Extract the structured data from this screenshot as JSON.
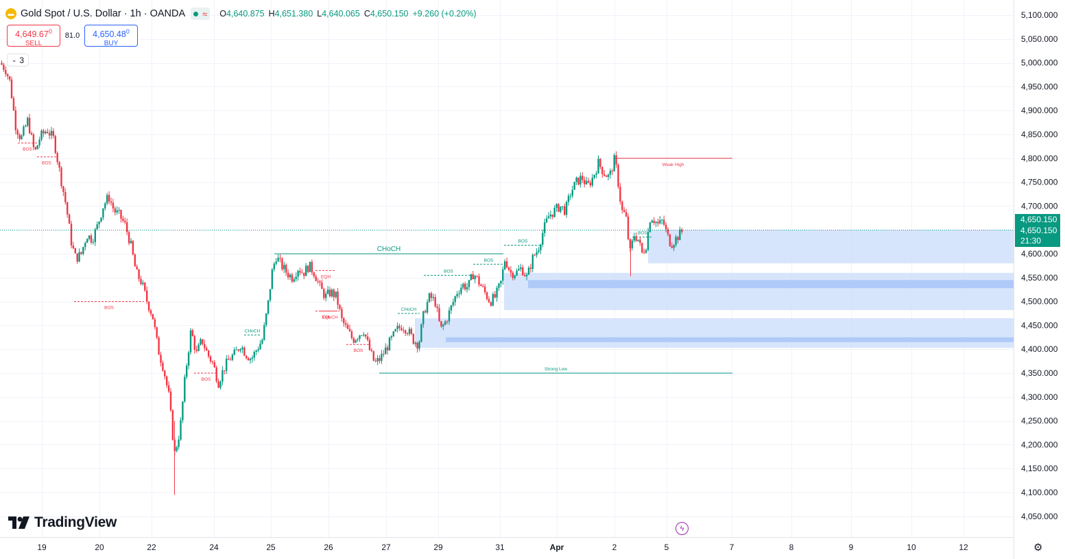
{
  "header": {
    "symbol_title": "Gold Spot / U.S. Dollar · 1h · OANDA",
    "indicator_wave": "≈",
    "ohlc": [
      {
        "k": "O",
        "v": "4,640.875"
      },
      {
        "k": "H",
        "v": "4,651.380"
      },
      {
        "k": "L",
        "v": "4,640.065"
      },
      {
        "k": "C",
        "v": "4,650.150"
      },
      {
        "k": "",
        "v": "+9.260 (+0.20%)"
      }
    ]
  },
  "trade": {
    "sell_price": "4,649.67",
    "sell_sup": "0",
    "sell_label": "SELL",
    "spread": "81.0",
    "buy_price": "4,650.48",
    "buy_sup": "0",
    "buy_label": "BUY"
  },
  "collapse_count": "3",
  "branding": "TradingView",
  "price_tag": {
    "upper": "4,650.150",
    "lower": "4,650.150",
    "countdown": "21:30"
  },
  "colors": {
    "up": "#089981",
    "down": "#f23645",
    "zone": "#c9dcfb",
    "zone_dark": "#a8c6f7",
    "struct_up": "#089981",
    "struct_down": "#f23645"
  },
  "chart_data": {
    "type": "candlestick",
    "title": "Gold Spot / U.S. Dollar · 1h · OANDA",
    "ylim": [
      4000,
      5125
    ],
    "y_ticks": [
      4050,
      4100,
      4150,
      4200,
      4250,
      4300,
      4350,
      4400,
      4450,
      4500,
      4550,
      4600,
      4650,
      4700,
      4750,
      4800,
      4850,
      4900,
      4950,
      5000,
      5050,
      5100
    ],
    "y_tick_labels": [
      "4,050.000",
      "4,100.000",
      "4,150.000",
      "4,200.000",
      "4,250.000",
      "4,300.000",
      "4,350.000",
      "4,400.000",
      "4,450.000",
      "4,500.000",
      "4,550.000",
      "4,600.000",
      "4,650.000",
      "4,700.000",
      "4,750.000",
      "4,800.000",
      "4,850.000",
      "4,900.000",
      "4,950.000",
      "5,000.000",
      "5,050.000",
      "5,100.000"
    ],
    "x_ticks": [
      "19",
      "20",
      "22",
      "24",
      "25",
      "26",
      "27",
      "29",
      "31",
      "Apr",
      "2",
      "5",
      "7",
      "8",
      "9",
      "10",
      "12"
    ],
    "grid": true,
    "last_price": 4650.15,
    "close_path": [
      [
        0,
        5000
      ],
      [
        8,
        4985
      ],
      [
        14,
        4960
      ],
      [
        22,
        4870
      ],
      [
        30,
        4840
      ],
      [
        40,
        4880
      ],
      [
        50,
        4810
      ],
      [
        58,
        4845
      ],
      [
        68,
        4860
      ],
      [
        78,
        4840
      ],
      [
        88,
        4760
      ],
      [
        96,
        4700
      ],
      [
        104,
        4620
      ],
      [
        110,
        4590
      ],
      [
        118,
        4600
      ],
      [
        126,
        4640
      ],
      [
        134,
        4630
      ],
      [
        142,
        4660
      ],
      [
        150,
        4700
      ],
      [
        158,
        4720
      ],
      [
        166,
        4690
      ],
      [
        174,
        4680
      ],
      [
        182,
        4660
      ],
      [
        190,
        4620
      ],
      [
        198,
        4560
      ],
      [
        206,
        4540
      ],
      [
        214,
        4500
      ],
      [
        222,
        4470
      ],
      [
        230,
        4400
      ],
      [
        238,
        4360
      ],
      [
        246,
        4300
      ],
      [
        254,
        4180
      ],
      [
        262,
        4230
      ],
      [
        270,
        4350
      ],
      [
        278,
        4440
      ],
      [
        286,
        4390
      ],
      [
        294,
        4420
      ],
      [
        302,
        4390
      ],
      [
        310,
        4370
      ],
      [
        318,
        4330
      ],
      [
        326,
        4360
      ],
      [
        334,
        4380
      ],
      [
        342,
        4390
      ],
      [
        350,
        4410
      ],
      [
        358,
        4390
      ],
      [
        366,
        4380
      ],
      [
        374,
        4400
      ],
      [
        382,
        4420
      ],
      [
        390,
        4490
      ],
      [
        396,
        4560
      ],
      [
        402,
        4595
      ],
      [
        410,
        4575
      ],
      [
        418,
        4560
      ],
      [
        426,
        4550
      ],
      [
        434,
        4570
      ],
      [
        442,
        4560
      ],
      [
        450,
        4575
      ],
      [
        458,
        4560
      ],
      [
        466,
        4530
      ],
      [
        474,
        4510
      ],
      [
        482,
        4520
      ],
      [
        490,
        4510
      ],
      [
        498,
        4460
      ],
      [
        506,
        4440
      ],
      [
        514,
        4420
      ],
      [
        522,
        4430
      ],
      [
        530,
        4440
      ],
      [
        538,
        4400
      ],
      [
        546,
        4370
      ],
      [
        554,
        4380
      ],
      [
        562,
        4400
      ],
      [
        570,
        4420
      ],
      [
        578,
        4440
      ],
      [
        586,
        4450
      ],
      [
        594,
        4440
      ],
      [
        602,
        4420
      ],
      [
        610,
        4410
      ],
      [
        618,
        4480
      ],
      [
        626,
        4510
      ],
      [
        634,
        4500
      ],
      [
        642,
        4440
      ],
      [
        650,
        4460
      ],
      [
        658,
        4490
      ],
      [
        666,
        4520
      ],
      [
        674,
        4535
      ],
      [
        682,
        4530
      ],
      [
        690,
        4560
      ],
      [
        698,
        4540
      ],
      [
        706,
        4520
      ],
      [
        714,
        4500
      ],
      [
        722,
        4510
      ],
      [
        730,
        4540
      ],
      [
        736,
        4590
      ],
      [
        744,
        4560
      ],
      [
        752,
        4560
      ],
      [
        760,
        4570
      ],
      [
        768,
        4550
      ],
      [
        776,
        4590
      ],
      [
        784,
        4610
      ],
      [
        792,
        4650
      ],
      [
        800,
        4680
      ],
      [
        808,
        4690
      ],
      [
        816,
        4700
      ],
      [
        824,
        4690
      ],
      [
        832,
        4730
      ],
      [
        840,
        4750
      ],
      [
        848,
        4760
      ],
      [
        856,
        4740
      ],
      [
        864,
        4760
      ],
      [
        872,
        4790
      ],
      [
        880,
        4770
      ],
      [
        888,
        4760
      ],
      [
        896,
        4800
      ],
      [
        900,
        4760
      ],
      [
        906,
        4690
      ],
      [
        912,
        4680
      ],
      [
        918,
        4600
      ],
      [
        924,
        4640
      ],
      [
        930,
        4630
      ],
      [
        936,
        4600
      ],
      [
        942,
        4620
      ],
      [
        948,
        4680
      ],
      [
        954,
        4670
      ],
      [
        960,
        4660
      ],
      [
        966,
        4670
      ],
      [
        972,
        4640
      ],
      [
        978,
        4620
      ],
      [
        984,
        4630
      ],
      [
        990,
        4640
      ],
      [
        996,
        4650
      ]
    ],
    "annotations": [
      {
        "text": "BOS",
        "kind": "down",
        "x0": 26,
        "x1": 54,
        "price": 4832
      },
      {
        "text": "BOS",
        "kind": "down",
        "x0": 54,
        "x1": 82,
        "price": 4803
      },
      {
        "text": "BOS",
        "kind": "down",
        "x0": 108,
        "x1": 210,
        "price": 4500
      },
      {
        "text": "BOS",
        "kind": "down",
        "x0": 283,
        "x1": 318,
        "price": 4350
      },
      {
        "text": "CHoCH",
        "kind": "up",
        "x0": 356,
        "x1": 380,
        "price": 4430
      },
      {
        "text": "CHoCH",
        "kind": "up",
        "x0": 400,
        "x1": 734,
        "price": 4600
      },
      {
        "text": "EQH",
        "kind": "down",
        "x0": 460,
        "x1": 490,
        "price": 4565
      },
      {
        "text": "EQL",
        "kind": "down",
        "x0": 460,
        "x1": 492,
        "price": 4480
      },
      {
        "text": "CHoCH",
        "kind": "down",
        "x0": 468,
        "x1": 495,
        "price": 4480
      },
      {
        "text": "BOS",
        "kind": "down",
        "x0": 505,
        "x1": 540,
        "price": 4410
      },
      {
        "text": "CHoCH",
        "kind": "up",
        "x0": 580,
        "x1": 612,
        "price": 4475
      },
      {
        "text": "BOS",
        "kind": "up",
        "x0": 618,
        "x1": 690,
        "price": 4555
      },
      {
        "text": "BOS",
        "kind": "up",
        "x0": 690,
        "x1": 735,
        "price": 4578
      },
      {
        "text": "BOS",
        "kind": "up",
        "x0": 735,
        "x1": 790,
        "price": 4618
      },
      {
        "text": "BOS",
        "kind": "up",
        "x0": 922,
        "x1": 952,
        "price": 4635
      },
      {
        "text": "Weak High",
        "kind": "down",
        "x0": 895,
        "x1": 1068,
        "price": 4800
      },
      {
        "text": "Strong Low",
        "kind": "up",
        "x0": 553,
        "x1": 1068,
        "price": 4350
      }
    ],
    "zones": [
      {
        "x0": 945,
        "price_top": 4650,
        "price_bottom": 4580
      },
      {
        "x0": 735,
        "price_top": 4560,
        "price_bottom": 4482
      },
      {
        "x0": 770,
        "price_top": 4545,
        "price_bottom": 4528,
        "dark": true
      },
      {
        "x0": 605,
        "price_top": 4465,
        "price_bottom": 4403
      },
      {
        "x0": 650,
        "price_top": 4425,
        "price_bottom": 4415,
        "dark": true
      }
    ]
  }
}
